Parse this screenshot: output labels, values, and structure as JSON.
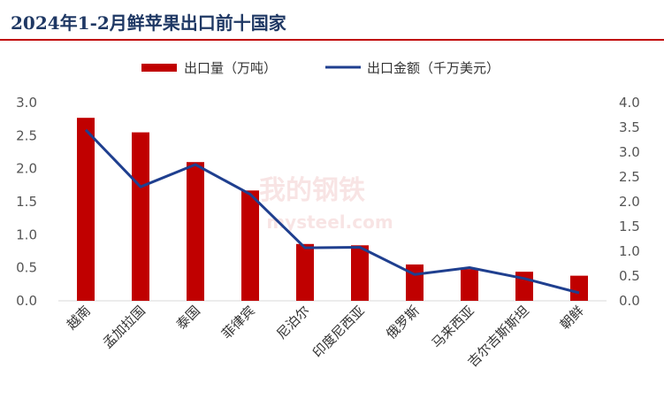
{
  "chart_data": {
    "type": "bar+line",
    "title": "2024年1-2月鲜苹果出口前十国家",
    "categories": [
      "越南",
      "孟加拉国",
      "泰国",
      "菲律宾",
      "尼泊尔",
      "印度尼西亚",
      "俄罗斯",
      "马来西亚",
      "吉尔吉斯斯坦",
      "朝鲜"
    ],
    "series": [
      {
        "name": "出口量（万吨）",
        "kind": "bar",
        "axis": "left",
        "color": "#c00000",
        "values": [
          2.77,
          2.55,
          2.1,
          1.67,
          0.86,
          0.84,
          0.55,
          0.48,
          0.44,
          0.38
        ]
      },
      {
        "name": "出口金额（千万美元）",
        "kind": "line",
        "axis": "right",
        "color": "#1f3f8f",
        "values": [
          3.45,
          2.3,
          2.75,
          2.15,
          1.07,
          1.08,
          0.53,
          0.67,
          0.45,
          0.16
        ]
      }
    ],
    "y_left": {
      "ylim": [
        0,
        3
      ],
      "ticks": [
        "0.0",
        "0.5",
        "1.0",
        "1.5",
        "2.0",
        "2.5",
        "3.0"
      ]
    },
    "y_right": {
      "ylim": [
        0,
        4
      ],
      "ticks": [
        "0.0",
        "0.5",
        "1.0",
        "1.5",
        "2.0",
        "2.5",
        "3.0",
        "3.5",
        "4.0"
      ]
    },
    "legend_position": "top-center",
    "grid": false
  },
  "watermark": {
    "text": "我的钢铁",
    "subtext": "mysteel.com"
  }
}
